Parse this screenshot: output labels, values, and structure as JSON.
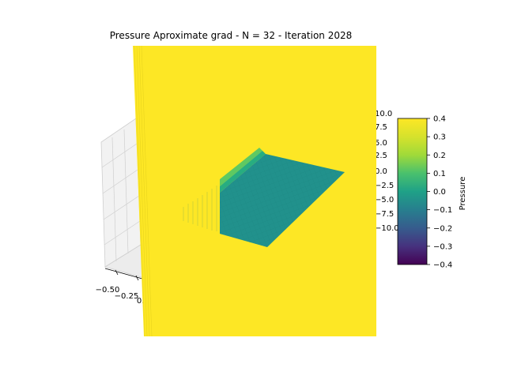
{
  "chart_data": {
    "type": "surface3d",
    "title": "Pressure Aproximate grad - N = 32 - Iteration 2028",
    "x_tick_labels": [
      "−0.50",
      "−0.25",
      "0.00"
    ],
    "z_tick_labels": [
      "10.0",
      "7.5",
      "5.0",
      "2.5",
      "0.0",
      "−2.5",
      "−5.0",
      "−7.5",
      "−10.0"
    ],
    "colorbar": {
      "label": "Pressure",
      "colormap": "viridis",
      "range": [
        -0.4,
        0.4
      ],
      "ticks": [
        0.4,
        0.3,
        0.2,
        0.1,
        0.0,
        -0.1,
        -0.2,
        -0.3,
        -0.4
      ],
      "tick_labels": [
        "0.4",
        "0.3",
        "0.2",
        "0.1",
        "0.0",
        "−0.1",
        "−0.2",
        "−0.3",
        "−0.4"
      ]
    },
    "surface_colors": {
      "saturated": "#fde725",
      "plateau": "#21918c",
      "plateau_edge": "#27ad81",
      "plateau_rim": "#5ec962"
    },
    "grid": true
  }
}
